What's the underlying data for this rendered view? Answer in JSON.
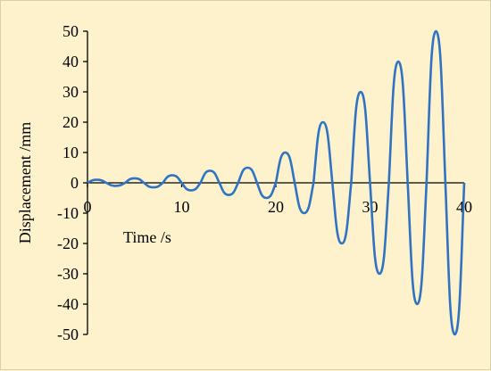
{
  "chart_data": {
    "type": "line",
    "title": "",
    "xlabel": "Time /s",
    "ylabel": "Displacement /mm",
    "xlim": [
      0,
      40
    ],
    "ylim": [
      -50,
      50
    ],
    "x_ticks": [
      0,
      10,
      20,
      30,
      40
    ],
    "y_ticks": [
      50,
      40,
      30,
      20,
      10,
      0,
      -10,
      -20,
      -30,
      -40,
      -50
    ],
    "grid": false,
    "legend": "none",
    "line_color": "#2f73c2",
    "background_color": "#fdf2cc",
    "series": [
      {
        "name": "",
        "x": [
          0,
          1,
          2,
          3,
          4,
          5,
          6,
          7,
          8,
          9,
          10,
          11,
          12,
          13,
          14,
          15,
          16,
          17,
          18,
          19,
          20,
          21,
          22,
          23,
          24,
          25,
          26,
          27,
          28,
          29,
          30,
          31,
          32,
          33,
          34,
          35,
          36,
          37,
          38,
          39,
          40
        ],
        "y": [
          0,
          1,
          0,
          -1,
          0,
          1.5,
          0,
          -1.5,
          0,
          2.5,
          0,
          -2.5,
          0,
          4,
          0,
          -4,
          0,
          5,
          0,
          -5,
          0,
          10,
          0,
          -10,
          0,
          20,
          0,
          -20,
          0,
          30,
          0,
          -30,
          0,
          40,
          0,
          -40,
          0,
          50,
          0,
          -50,
          0
        ]
      }
    ]
  }
}
